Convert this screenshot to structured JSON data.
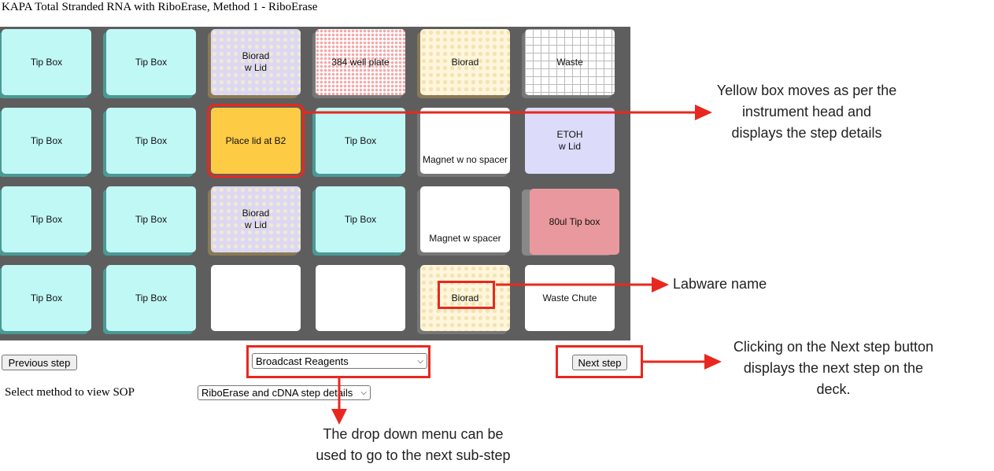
{
  "page": {
    "title": "KAPA Total Stranded RNA with RiboErase, Method 1 - RiboErase"
  },
  "deck": {
    "rows": [
      [
        {
          "lines": [
            "Tip Box"
          ]
        },
        {
          "lines": [
            "Tip Box"
          ]
        },
        {
          "lines": [
            "Biorad",
            "w Lid"
          ]
        },
        {
          "lines": [
            "384 well plate"
          ]
        },
        {
          "lines": [
            "Biorad"
          ]
        },
        {
          "lines": [
            "Waste"
          ]
        }
      ],
      [
        {
          "lines": [
            "Tip Box"
          ]
        },
        {
          "lines": [
            "Tip Box"
          ]
        },
        {
          "lines": [
            "Place lid at B2"
          ]
        },
        {
          "lines": [
            "Tip Box"
          ]
        },
        {
          "lines": [
            "Magnet w no spacer"
          ]
        },
        {
          "lines": [
            "ETOH",
            "w Lid"
          ]
        }
      ],
      [
        {
          "lines": [
            "Tip Box"
          ]
        },
        {
          "lines": [
            "Tip Box"
          ]
        },
        {
          "lines": [
            "Biorad",
            "w Lid"
          ]
        },
        {
          "lines": [
            "Tip Box"
          ]
        },
        {
          "lines": [
            "Magnet w spacer"
          ]
        },
        {
          "lines": [
            "80ul Tip box"
          ]
        }
      ],
      [
        {
          "lines": [
            "Tip Box"
          ]
        },
        {
          "lines": [
            "Tip Box"
          ]
        },
        {
          "lines": []
        },
        {
          "lines": []
        },
        {
          "lines": [
            "Biorad"
          ]
        },
        {
          "lines": [
            "Waste Chute"
          ]
        }
      ]
    ]
  },
  "controls": {
    "previous_label": "Previous step",
    "next_label": "Next step",
    "substep_select_value": "Broadcast Reagents",
    "method_label": "Select method to view SOP",
    "method_select_value": "RiboErase and cDNA step details"
  },
  "annotations": {
    "yellow_box": [
      "Yellow box moves as per the",
      "instrument head and",
      "displays the step details"
    ],
    "labware": [
      "Labware name"
    ],
    "next_step": [
      "Clicking on the Next step button",
      "displays the next step on the",
      "deck."
    ],
    "dropdown": [
      "The drop down menu can be",
      "used to go to the next sub-step"
    ]
  },
  "colors": {
    "accent_red": "#e8281f",
    "active_yellow": "#fecb45",
    "tip_box": "#c0f8f6"
  }
}
